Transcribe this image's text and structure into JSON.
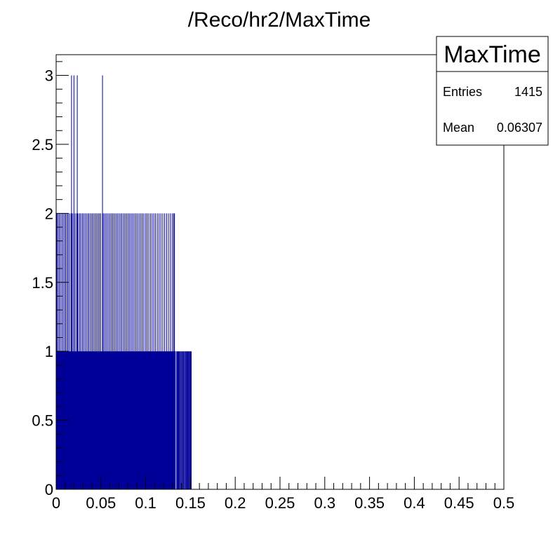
{
  "chart_data": {
    "type": "bar",
    "title": "/Reco/hr2/MaxTime",
    "xlabel": "",
    "ylabel": "",
    "xlim": [
      0,
      0.5
    ],
    "ylim": [
      0,
      3.15
    ],
    "x_ticks": [
      "0",
      "0.05",
      "0.1",
      "0.15",
      "0.2",
      "0.25",
      "0.3",
      "0.35",
      "0.4",
      "0.45",
      "0.5"
    ],
    "y_ticks": [
      "0",
      "0.5",
      "1",
      "1.5",
      "2",
      "2.5",
      "3"
    ],
    "grid": false,
    "bar_color": "#000099",
    "bin_width": 0.0005,
    "spikes_height_2": [
      0.0002,
      0.0012,
      0.0027,
      0.0041,
      0.0058,
      0.0073,
      0.0089,
      0.0102,
      0.0118,
      0.0131,
      0.0146,
      0.0163,
      0.0177,
      0.0194,
      0.0209,
      0.0226,
      0.024,
      0.0257,
      0.0271,
      0.0288,
      0.0302,
      0.0319,
      0.0335,
      0.0352,
      0.0366,
      0.0383,
      0.0399,
      0.0414,
      0.0431,
      0.0447,
      0.0463,
      0.0478,
      0.0494,
      0.0521,
      0.0537,
      0.0553,
      0.0569,
      0.0586,
      0.0602,
      0.0619,
      0.0634,
      0.0651,
      0.0668,
      0.0684,
      0.0701,
      0.0718,
      0.0733,
      0.0751,
      0.0767,
      0.0784,
      0.0801,
      0.0817,
      0.0834,
      0.0851,
      0.0868,
      0.0886,
      0.0903,
      0.0921,
      0.0938,
      0.0956,
      0.0974,
      0.0993,
      0.1011,
      0.103,
      0.1049,
      0.1068,
      0.1087,
      0.1106,
      0.1126,
      0.1146,
      0.1166,
      0.1187,
      0.1208,
      0.1229,
      0.125,
      0.1271,
      0.1292,
      0.1308,
      0.1318
    ],
    "spikes_height_3": [
      0.0168,
      0.0195,
      0.0232,
      0.0514
    ],
    "ones_range": [
      0.0,
      0.1335
    ],
    "sparse_tail_height_1": [
      0.1342,
      0.1349,
      0.1356,
      0.1364,
      0.1372,
      0.1381,
      0.1389,
      0.1398,
      0.1406,
      0.1415,
      0.1423,
      0.1432,
      0.1441,
      0.1449,
      0.1458,
      0.1466,
      0.1474,
      0.1482,
      0.149,
      0.1497,
      0.1505
    ],
    "stats": {
      "title": "MaxTime",
      "entries_label": "Entries",
      "entries_value": "1415",
      "mean_label": "Mean",
      "mean_value": "0.06307"
    }
  }
}
